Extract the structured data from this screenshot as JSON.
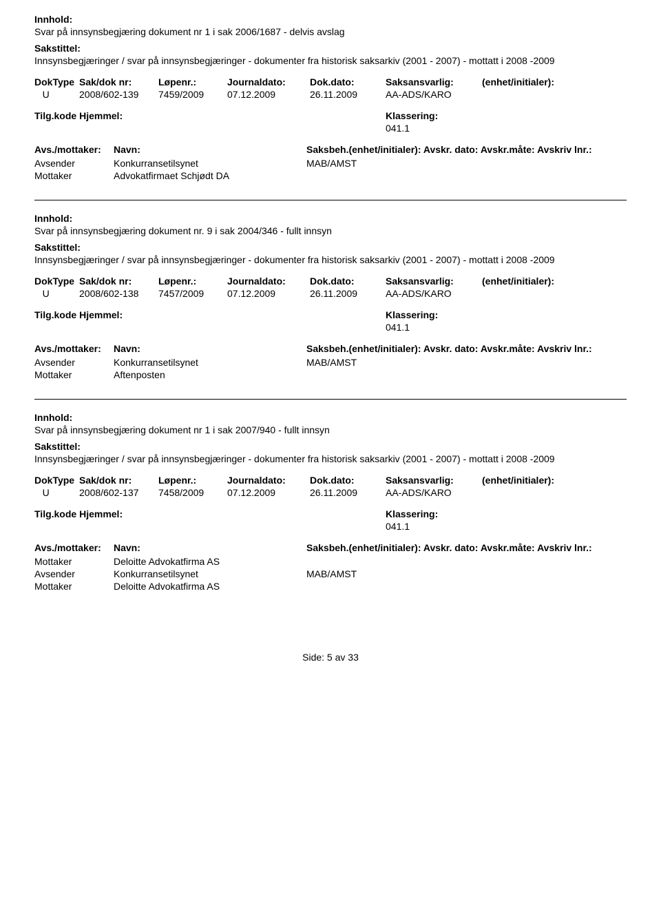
{
  "labels": {
    "innhold": "Innhold:",
    "sakstittel": "Sakstittel:",
    "doktype": "DokType",
    "sakdoknr": "Sak/dok nr:",
    "lopenr": "Løpenr.:",
    "journaldato": "Journaldato:",
    "dokdato": "Dok.dato:",
    "saksansvarlig": "Saksansvarlig:",
    "enhet": "(enhet/initialer):",
    "tilgkode": "Tilg.kode Hjemmel:",
    "klassering": "Klassering:",
    "avsmottaker": "Avs./mottaker:",
    "navn": "Navn:",
    "saksbeh": "Saksbeh.(enhet/initialer): Avskr. dato: Avskr.måte: Avskriv lnr.:",
    "avsender": "Avsender",
    "mottaker": "Mottaker"
  },
  "records": [
    {
      "innhold": "Svar på innsynsbegjæring dokument nr 1 i sak 2006/1687 - delvis avslag",
      "sakstittel": "Innsynsbegjæringer / svar på innsynsbegjæringer - dokumenter fra historisk saksarkiv (2001 - 2007) - mottatt i 2008 -2009",
      "doktype": "U",
      "sakdoknr": "2008/602-139",
      "lopenr": "7459/2009",
      "journaldato": "07.12.2009",
      "dokdato": "26.11.2009",
      "saksansvarlig": "AA-ADS/KARO",
      "klass_value": "041.1",
      "parties": [
        {
          "role": "Avsender",
          "name": "Konkurransetilsynet",
          "code": "MAB/AMST"
        },
        {
          "role": "Mottaker",
          "name": "Advokatfirmaet Schjødt DA",
          "code": ""
        }
      ]
    },
    {
      "innhold": "Svar på innsynsbegjæring dokument nr. 9 i sak 2004/346 - fullt innsyn",
      "sakstittel": "Innsynsbegjæringer / svar på innsynsbegjæringer - dokumenter fra historisk saksarkiv (2001 - 2007) - mottatt i 2008 -2009",
      "doktype": "U",
      "sakdoknr": "2008/602-138",
      "lopenr": "7457/2009",
      "journaldato": "07.12.2009",
      "dokdato": "26.11.2009",
      "saksansvarlig": "AA-ADS/KARO",
      "klass_value": "041.1",
      "parties": [
        {
          "role": "Avsender",
          "name": "Konkurransetilsynet",
          "code": "MAB/AMST"
        },
        {
          "role": "Mottaker",
          "name": "Aftenposten",
          "code": ""
        }
      ]
    },
    {
      "innhold": "Svar på innsynsbegjæring dokument nr 1 i sak 2007/940 - fullt innsyn",
      "sakstittel": "Innsynsbegjæringer / svar på innsynsbegjæringer - dokumenter fra historisk saksarkiv (2001 - 2007) - mottatt i 2008 -2009",
      "doktype": "U",
      "sakdoknr": "2008/602-137",
      "lopenr": "7458/2009",
      "journaldato": "07.12.2009",
      "dokdato": "26.11.2009",
      "saksansvarlig": "AA-ADS/KARO",
      "klass_value": "041.1",
      "parties": [
        {
          "role": "Mottaker",
          "name": "Deloitte Advokatfirma AS",
          "code": ""
        },
        {
          "role": "Avsender",
          "name": "Konkurransetilsynet",
          "code": "MAB/AMST"
        },
        {
          "role": "Mottaker",
          "name": "Deloitte Advokatfirma AS",
          "code": ""
        }
      ]
    }
  ],
  "footer": "Side: 5 av 33"
}
